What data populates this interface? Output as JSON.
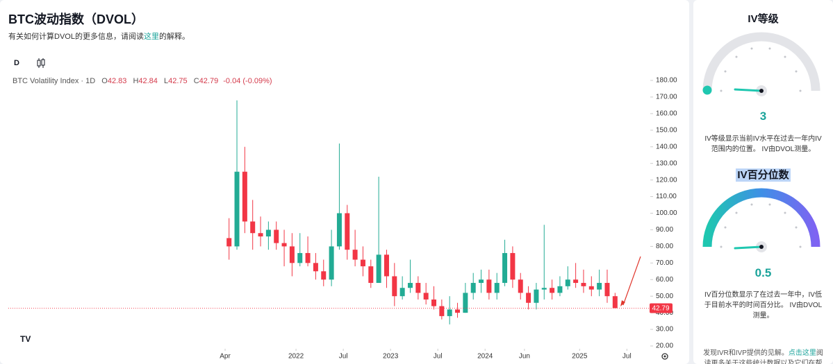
{
  "header": {
    "title": "BTC波动指数（DVOL）",
    "subtitle_before": "有关如何计算DVOL的更多信息，请阅读",
    "subtitle_link": "这里",
    "subtitle_after": "的解释。",
    "interval": "D"
  },
  "legend": {
    "name": "BTC Volatility Index · 1D",
    "o_key": "O",
    "o": "42.83",
    "h_key": "H",
    "h": "42.84",
    "l_key": "L",
    "l": "42.75",
    "c_key": "C",
    "c": "42.79",
    "change": "-0.04 (-0.09%)"
  },
  "chart_data": {
    "type": "candlestick",
    "x": [
      "2021-04",
      "2021-05",
      "2021-06",
      "2021-07",
      "2021-08",
      "2021-09",
      "2021-10",
      "2021-11",
      "2021-12",
      "2022-01",
      "2022-02",
      "2022-03",
      "2022-04",
      "2022-05",
      "2022-06",
      "2022-07",
      "2022-08",
      "2022-09",
      "2022-10",
      "2022-11",
      "2022-12",
      "2023-01",
      "2023-02",
      "2023-03",
      "2023-04",
      "2023-05",
      "2023-06",
      "2023-07",
      "2023-08",
      "2023-09",
      "2023-10",
      "2023-11",
      "2023-12",
      "2024-01",
      "2024-02",
      "2024-03",
      "2024-04",
      "2024-05",
      "2024-06",
      "2024-07",
      "2024-08",
      "2024-09",
      "2024-10",
      "2024-11",
      "2024-12",
      "2025-01",
      "2025-02",
      "2025-03",
      "2025-04",
      "2025-05"
    ],
    "open": [
      85,
      80,
      125,
      95,
      88,
      86,
      90,
      82,
      80,
      70,
      76,
      70,
      65,
      60,
      80,
      100,
      78,
      72,
      68,
      58,
      75,
      62,
      50,
      55,
      58,
      52,
      48,
      44,
      38,
      42,
      40,
      52,
      58,
      60,
      52,
      58,
      76,
      60,
      52,
      46,
      54,
      55,
      52,
      56,
      60,
      58,
      56,
      54,
      58,
      50
    ],
    "high": [
      97,
      168,
      140,
      108,
      98,
      95,
      95,
      90,
      88,
      88,
      86,
      76,
      72,
      90,
      142,
      105,
      90,
      80,
      72,
      122,
      78,
      70,
      62,
      72,
      62,
      58,
      56,
      48,
      50,
      46,
      58,
      64,
      66,
      66,
      64,
      84,
      80,
      64,
      56,
      58,
      93,
      60,
      62,
      68,
      70,
      66,
      62,
      66,
      66,
      52
    ],
    "low": [
      72,
      78,
      88,
      78,
      80,
      78,
      78,
      68,
      62,
      68,
      68,
      60,
      56,
      56,
      78,
      72,
      68,
      62,
      55,
      58,
      55,
      44,
      48,
      52,
      48,
      45,
      42,
      36,
      33,
      37,
      40,
      48,
      52,
      48,
      48,
      56,
      55,
      48,
      42,
      42,
      48,
      48,
      50,
      54,
      55,
      52,
      50,
      50,
      46,
      42.75
    ],
    "close": [
      80,
      125,
      95,
      88,
      86,
      90,
      82,
      80,
      70,
      76,
      70,
      65,
      60,
      80,
      100,
      78,
      72,
      68,
      58,
      75,
      62,
      50,
      55,
      58,
      52,
      48,
      44,
      38,
      42,
      40,
      52,
      58,
      60,
      52,
      58,
      76,
      60,
      52,
      46,
      54,
      55,
      52,
      56,
      60,
      58,
      56,
      54,
      58,
      50,
      42.79
    ],
    "up_color": "#22ab94",
    "down_color": "#f23645",
    "xlim": [
      "2021-01",
      "2025-09"
    ],
    "xticks": [
      {
        "value": "2021-04",
        "label": "Apr"
      },
      {
        "value": "2022-01",
        "label": "2022"
      },
      {
        "value": "2022-07",
        "label": "Jul"
      },
      {
        "value": "2023-01",
        "label": "2023"
      },
      {
        "value": "2023-07",
        "label": "Jul"
      },
      {
        "value": "2024-01",
        "label": "2024"
      },
      {
        "value": "2024-06",
        "label": "Jun"
      },
      {
        "value": "2025-01",
        "label": "2025"
      },
      {
        "value": "2025-07",
        "label": "Jul"
      }
    ],
    "ylim": [
      20,
      180
    ],
    "yticks": [
      {
        "value": 20,
        "label": "20.00"
      },
      {
        "value": 30,
        "label": "30.00"
      },
      {
        "value": 40,
        "label": "40.00"
      },
      {
        "value": 50,
        "label": "50.00"
      },
      {
        "value": 60,
        "label": "60.00"
      },
      {
        "value": 70,
        "label": "70.00"
      },
      {
        "value": 80,
        "label": "80.00"
      },
      {
        "value": 90,
        "label": "90.00"
      },
      {
        "value": 100,
        "label": "100.00"
      },
      {
        "value": 110,
        "label": "110.00"
      },
      {
        "value": 120,
        "label": "120.00"
      },
      {
        "value": 130,
        "label": "130.00"
      },
      {
        "value": 140,
        "label": "140.00"
      },
      {
        "value": 150,
        "label": "150.00"
      },
      {
        "value": 160,
        "label": "160.00"
      },
      {
        "value": 170,
        "label": "170.00"
      },
      {
        "value": 180,
        "label": "180.00"
      }
    ],
    "last_price": 42.79,
    "grid": false
  },
  "side": {
    "rank_title": "IV等级",
    "rank_value": "3",
    "rank_desc": "IV等级显示当前IV水平在过去一年内IV范围内的位置。 IV由DVOL测量。",
    "pct_title": "IV百分位数",
    "pct_value": "0.5",
    "pct_desc": "IV百分位数显示了在过去一年中，IV低于目前水平的时间百分比。 IV由DVOL测量。",
    "footer_before": "发现IVR和IVP提供的见解。",
    "footer_link": "点击这里",
    "footer_after": "阅读更多关于这些统计数据以及它们在帮助您"
  }
}
